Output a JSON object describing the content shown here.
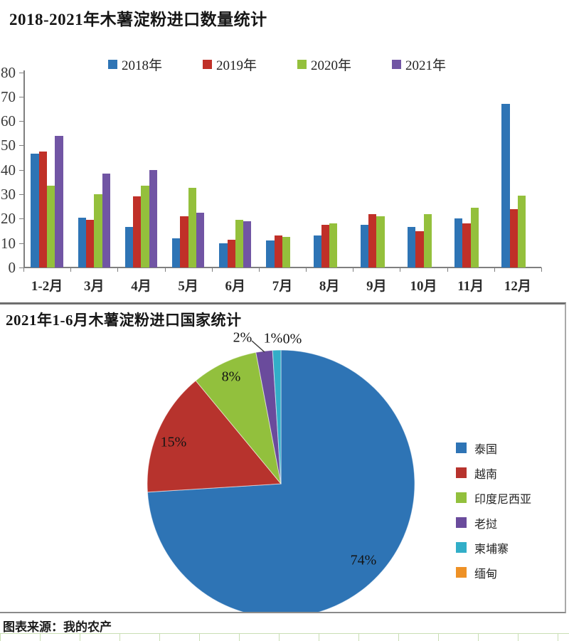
{
  "chart_data": [
    {
      "type": "bar",
      "title": "2018-2021年木薯淀粉进口数量统计",
      "categories": [
        "1-2月",
        "3月",
        "4月",
        "5月",
        "6月",
        "7月",
        "8月",
        "9月",
        "10月",
        "11月",
        "12月"
      ],
      "series": [
        {
          "name": "2018年",
          "color": "#2E74B5",
          "values": [
            46.5,
            20.5,
            16.5,
            12,
            10,
            11,
            13,
            17.5,
            16.5,
            20,
            67
          ]
        },
        {
          "name": "2019年",
          "color": "#C03028",
          "values": [
            47.5,
            19.5,
            29,
            21,
            11.5,
            13,
            17.5,
            22,
            15,
            18,
            24
          ]
        },
        {
          "name": "2020年",
          "color": "#94C03C",
          "values": [
            33.5,
            30,
            33.5,
            32.5,
            19.5,
            12.5,
            18,
            21,
            22,
            24.5,
            29.5
          ]
        },
        {
          "name": "2021年",
          "color": "#7155A4",
          "values": [
            54,
            38.5,
            40,
            22.5,
            19,
            null,
            null,
            null,
            null,
            null,
            null
          ]
        }
      ],
      "ylim": [
        0,
        80
      ],
      "y_ticks": [
        "0",
        "10",
        "20",
        "30",
        "40",
        "50",
        "60",
        "70",
        "80"
      ],
      "grid": false,
      "legend_position": "top"
    },
    {
      "type": "pie",
      "title": "2021年1-6月木薯淀粉进口国家统计",
      "slices": [
        {
          "label": "泰国",
          "value": 74,
          "percent_label": "74%",
          "color": "#2E74B5"
        },
        {
          "label": "越南",
          "value": 15,
          "percent_label": "15%",
          "color": "#B7332D"
        },
        {
          "label": "印度尼西亚",
          "value": 8,
          "percent_label": "8%",
          "color": "#92C03D"
        },
        {
          "label": "老挝",
          "value": 2,
          "percent_label": "2%",
          "color": "#6A4B9C"
        },
        {
          "label": "柬埔寨",
          "value": 1,
          "percent_label": "1%",
          "color": "#32AEC8"
        },
        {
          "label": "缅甸",
          "value": 0,
          "percent_label": "0%",
          "color": "#EE9126"
        }
      ],
      "legend_position": "right"
    }
  ],
  "footer": {
    "source_text": "图表来源：我的农产"
  }
}
